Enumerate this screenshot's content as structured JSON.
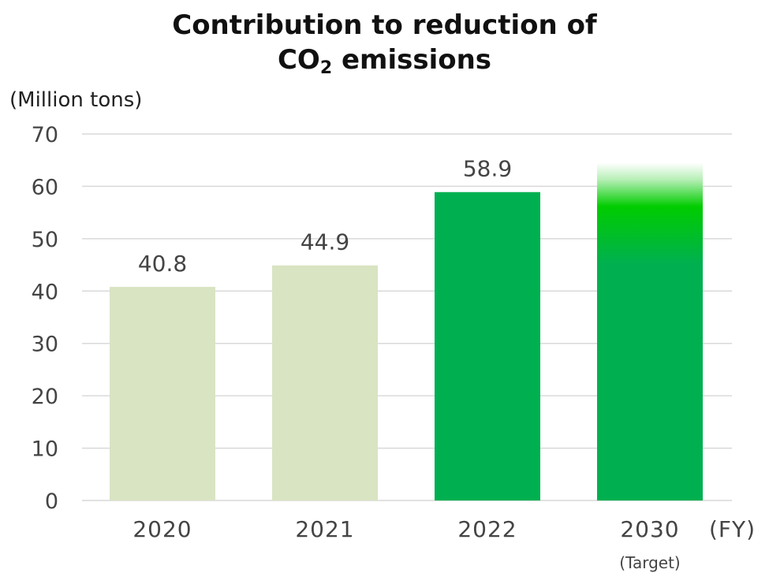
{
  "title": {
    "line1": "Contribution to reduction of",
    "line2_main": "CO",
    "line2_sub": "2",
    "line2_rest": " emissions"
  },
  "unit_label": "(Million tons)",
  "x_unit_label": "(FY)",
  "target_note": "(Target)",
  "colors": {
    "past": "#d9e4c2",
    "current": "#00b050",
    "target_top": "#00cc00",
    "grid": "#d9d9d9",
    "text": "#444444"
  },
  "chart_data": {
    "type": "bar",
    "categories": [
      "2020",
      "2021",
      "2022",
      "2030"
    ],
    "values": [
      40.8,
      44.9,
      58.9,
      64.5
    ],
    "data_labels": [
      "40.8",
      "44.9",
      "58.9",
      ""
    ],
    "ylim": [
      0,
      70
    ],
    "yticks": [
      0,
      10,
      20,
      30,
      40,
      50,
      60,
      70
    ],
    "grid": true,
    "bar_styles": [
      "past",
      "past",
      "current",
      "target"
    ],
    "ylabel": "(Million tons)",
    "xlabel": "(FY)"
  }
}
